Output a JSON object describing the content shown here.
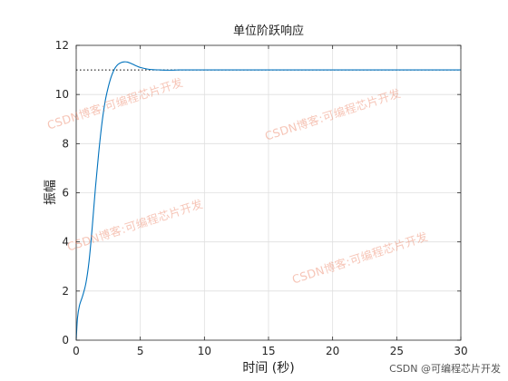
{
  "chart_data": {
    "type": "line",
    "title": "单位阶跃响应",
    "xlabel": "时间 (秒)",
    "ylabel": "振幅",
    "xlim": [
      0,
      30
    ],
    "ylim": [
      0,
      12
    ],
    "xticks": [
      0,
      5,
      10,
      15,
      20,
      25,
      30
    ],
    "yticks": [
      0,
      2,
      4,
      6,
      8,
      10,
      12
    ],
    "grid": true,
    "steady_state": 11,
    "series": [
      {
        "color": "#0072BD",
        "x": [
          0,
          0.1,
          0.25,
          0.5,
          0.75,
          1.0,
          1.25,
          1.5,
          1.75,
          2.0,
          2.25,
          2.5,
          2.75,
          3.0,
          3.25,
          3.5,
          3.75,
          4.0,
          4.25,
          4.5,
          4.75,
          5.0,
          5.5,
          6.0,
          6.5,
          7.0,
          7.5,
          8.0,
          9.0,
          10.0,
          12.0,
          15.0,
          20.0,
          25.0,
          30.0
        ],
        "y": [
          0,
          0.9,
          1.4,
          1.8,
          2.3,
          3.2,
          4.6,
          6.2,
          7.6,
          8.8,
          9.7,
          10.3,
          10.75,
          11.05,
          11.22,
          11.3,
          11.33,
          11.32,
          11.27,
          11.21,
          11.15,
          11.1,
          11.04,
          11.01,
          11.0,
          10.99,
          10.99,
          11.0,
          11.0,
          11.0,
          11.0,
          11.0,
          11.0,
          11.0,
          11.0
        ]
      }
    ]
  },
  "watermarks": [
    "CSDN博客:可编程芯片开发",
    "CSDN博客:可编程芯片开发",
    "CSDN博客:可编程芯片开发",
    "CSDN博客:可编程芯片开发"
  ],
  "footer": {
    "credit": "CSDN @可编程芯片开发"
  }
}
